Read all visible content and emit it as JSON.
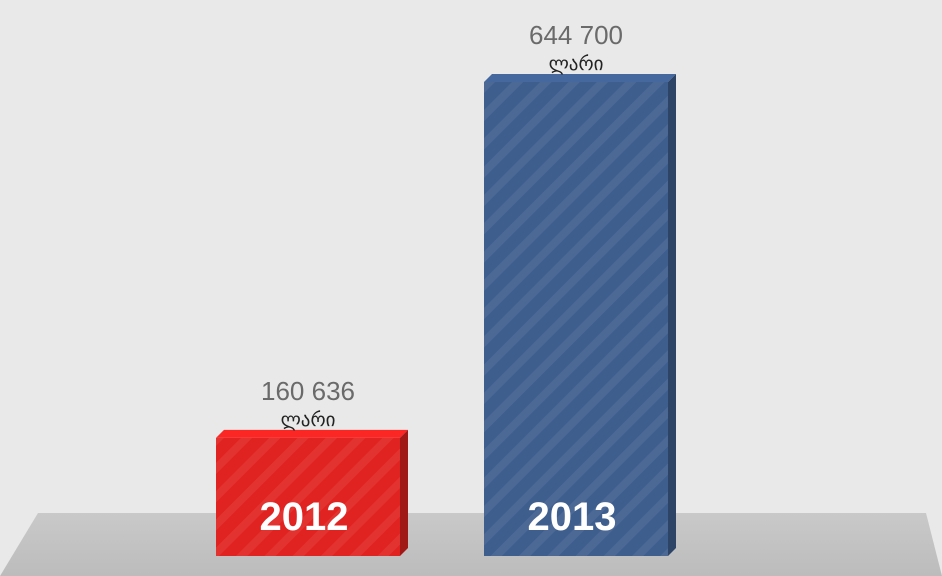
{
  "chart_data": {
    "type": "bar",
    "categories": [
      "2012",
      "2013"
    ],
    "values": [
      160636,
      644700
    ],
    "value_labels": [
      "160 636",
      "644 700"
    ],
    "unit": "ლარი",
    "colors": [
      "#e02320",
      "#3e5e8e"
    ],
    "title": "",
    "xlabel": "",
    "ylabel": "",
    "ylim": [
      0,
      644700
    ],
    "grid": false,
    "legend": "none"
  }
}
